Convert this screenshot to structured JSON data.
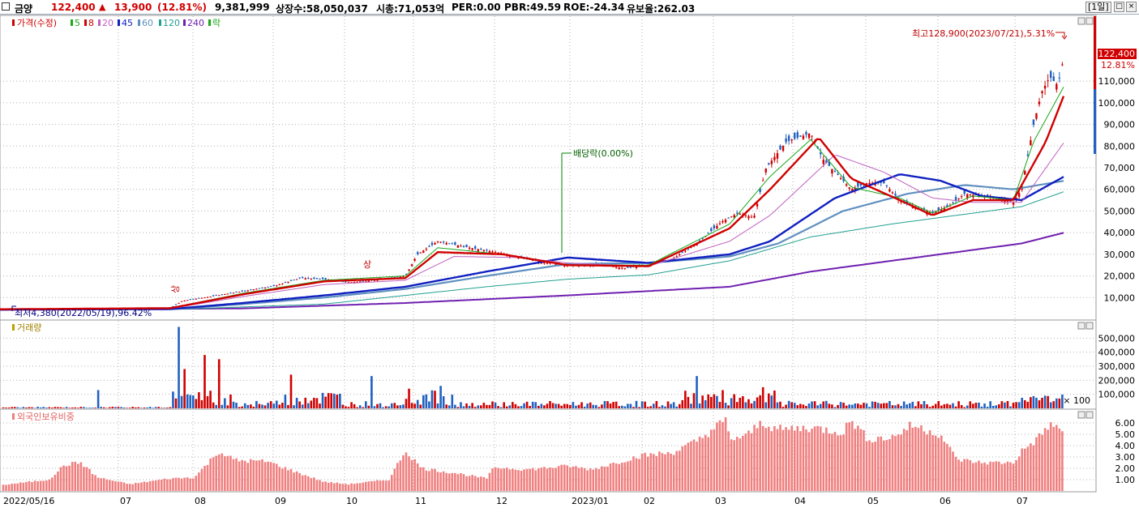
{
  "header": {
    "name": "금양",
    "price": "122,400",
    "change_arrow": "▲",
    "change": "13,900",
    "change_pct": "(12.81%)",
    "volume": "9,381,999",
    "listed": "상장수:58,050,037",
    "mktcap": "시총:71,053억",
    "per": "PER:0.00",
    "pbr": "PBR:49.59",
    "roe": "ROE:-24.34",
    "reserve": "유보율:262.03",
    "period": "[1일]",
    "max_btn": "□",
    "close_btn": "×"
  },
  "legend": {
    "price": "가격(수정)",
    "ma": [
      "5",
      "8",
      "20",
      "45",
      "60",
      "120",
      "240"
    ],
    "ex": "락"
  },
  "colors": {
    "up": "#d00000",
    "down": "#2060c0",
    "ma5": "#1aa81a",
    "ma8": "#d00000",
    "ma20": "#c060c0",
    "ma45": "#1020c0",
    "ma60": "#6090c0",
    "ma120": "#20a090",
    "ma240": "#7020b0",
    "grid": "#b0b0b0",
    "volume_up": "#d00000",
    "volume_down": "#2060c0",
    "foreign": "#f08080"
  },
  "annotations": {
    "high": "최고128,900(2023/07/21),5.31%",
    "low": "최저4,380(2022/05/19),96.42%",
    "dividend": "배당락(0.00%)",
    "current_price": "122,400",
    "current_pct": "12.81%",
    "limit_up_1": "상",
    "limit_up_2": "상"
  },
  "panels": {
    "volume": "거래량",
    "foreign": "외국인보유비중",
    "volume_unit": "× 100"
  },
  "chart_data": [
    {
      "type": "candlestick",
      "title": "가격(수정)",
      "ylim": [
        0,
        140000
      ],
      "y_ticks": [
        "10,000",
        "20,000",
        "30,000",
        "40,000",
        "50,000",
        "60,000",
        "70,000",
        "80,000",
        "90,000",
        "100,000",
        "110,000"
      ],
      "x_ticks": [
        "2022/05/16",
        "07",
        "08",
        "09",
        "10",
        "11",
        "12",
        "2023/01",
        "02",
        "03",
        "04",
        "05",
        "06",
        "07"
      ],
      "close_points": [
        [
          0,
          4600
        ],
        [
          120,
          4800
        ],
        [
          210,
          5200
        ],
        [
          225,
          8500
        ],
        [
          260,
          10500
        ],
        [
          300,
          13000
        ],
        [
          340,
          15500
        ],
        [
          370,
          19000
        ],
        [
          400,
          18500
        ],
        [
          430,
          17000
        ],
        [
          460,
          18000
        ],
        [
          500,
          20000
        ],
        [
          515,
          30000
        ],
        [
          540,
          36000
        ],
        [
          580,
          33000
        ],
        [
          620,
          30500
        ],
        [
          660,
          27000
        ],
        [
          700,
          25000
        ],
        [
          740,
          25500
        ],
        [
          770,
          23500
        ],
        [
          800,
          25000
        ],
        [
          830,
          28000
        ],
        [
          860,
          35000
        ],
        [
          890,
          45000
        ],
        [
          910,
          49000
        ],
        [
          930,
          47000
        ],
        [
          945,
          70000
        ],
        [
          970,
          82000
        ],
        [
          1000,
          86000
        ],
        [
          1015,
          74000
        ],
        [
          1030,
          68000
        ],
        [
          1050,
          60000
        ],
        [
          1070,
          63000
        ],
        [
          1090,
          63000
        ],
        [
          1110,
          55000
        ],
        [
          1130,
          52000
        ],
        [
          1150,
          49000
        ],
        [
          1170,
          52000
        ],
        [
          1190,
          58000
        ],
        [
          1210,
          57000
        ],
        [
          1230,
          56000
        ],
        [
          1250,
          54000
        ],
        [
          1260,
          60000
        ],
        [
          1275,
          90000
        ],
        [
          1285,
          105000
        ],
        [
          1295,
          112000
        ],
        [
          1305,
          108000
        ],
        [
          1313,
          122400
        ]
      ],
      "ma_points": {
        "ma5": [
          [
            0,
            4600
          ],
          [
            210,
            5200
          ],
          [
            300,
            12000
          ],
          [
            400,
            18000
          ],
          [
            500,
            20000
          ],
          [
            540,
            33000
          ],
          [
            620,
            30000
          ],
          [
            700,
            25000
          ],
          [
            800,
            25000
          ],
          [
            900,
            44000
          ],
          [
            950,
            66000
          ],
          [
            1000,
            83000
          ],
          [
            1050,
            61000
          ],
          [
            1110,
            56000
          ],
          [
            1150,
            49000
          ],
          [
            1200,
            57000
          ],
          [
            1250,
            55000
          ],
          [
            1275,
            82000
          ],
          [
            1313,
            108000
          ]
        ],
        "ma8": [
          [
            0,
            4600
          ],
          [
            210,
            5100
          ],
          [
            300,
            11500
          ],
          [
            400,
            17500
          ],
          [
            500,
            19000
          ],
          [
            540,
            31000
          ],
          [
            620,
            30000
          ],
          [
            700,
            25000
          ],
          [
            800,
            24500
          ],
          [
            900,
            42000
          ],
          [
            950,
            60000
          ],
          [
            1010,
            84000
          ],
          [
            1050,
            65000
          ],
          [
            1110,
            55000
          ],
          [
            1150,
            48000
          ],
          [
            1200,
            55000
          ],
          [
            1250,
            55000
          ],
          [
            1290,
            82000
          ],
          [
            1313,
            104000
          ]
        ],
        "ma20": [
          [
            0,
            4500
          ],
          [
            210,
            4900
          ],
          [
            300,
            10500
          ],
          [
            400,
            16000
          ],
          [
            500,
            18000
          ],
          [
            560,
            29000
          ],
          [
            640,
            28500
          ],
          [
            700,
            26000
          ],
          [
            800,
            24500
          ],
          [
            900,
            36000
          ],
          [
            950,
            48000
          ],
          [
            1030,
            76000
          ],
          [
            1090,
            68000
          ],
          [
            1150,
            56000
          ],
          [
            1200,
            54000
          ],
          [
            1260,
            54000
          ],
          [
            1313,
            82000
          ]
        ],
        "ma45": [
          [
            0,
            4500
          ],
          [
            210,
            4700
          ],
          [
            300,
            7500
          ],
          [
            400,
            11000
          ],
          [
            500,
            15000
          ],
          [
            600,
            22000
          ],
          [
            700,
            28500
          ],
          [
            800,
            26000
          ],
          [
            900,
            30000
          ],
          [
            950,
            36000
          ],
          [
            1030,
            56000
          ],
          [
            1110,
            67000
          ],
          [
            1160,
            64000
          ],
          [
            1210,
            57000
          ],
          [
            1260,
            55000
          ],
          [
            1313,
            66000
          ]
        ],
        "ma60": [
          [
            0,
            4500
          ],
          [
            210,
            4600
          ],
          [
            300,
            7000
          ],
          [
            400,
            10000
          ],
          [
            500,
            14000
          ],
          [
            600,
            20000
          ],
          [
            700,
            25500
          ],
          [
            800,
            26000
          ],
          [
            900,
            29000
          ],
          [
            960,
            35000
          ],
          [
            1040,
            50000
          ],
          [
            1120,
            58000
          ],
          [
            1190,
            62000
          ],
          [
            1250,
            60000
          ],
          [
            1313,
            64000
          ]
        ],
        "ma120": [
          [
            0,
            4400
          ],
          [
            210,
            4500
          ],
          [
            400,
            7000
          ],
          [
            600,
            15000
          ],
          [
            700,
            18500
          ],
          [
            800,
            20500
          ],
          [
            900,
            27000
          ],
          [
            1000,
            38000
          ],
          [
            1100,
            44000
          ],
          [
            1200,
            49000
          ],
          [
            1260,
            52000
          ],
          [
            1313,
            59000
          ]
        ],
        "ma240": [
          [
            0,
            4300
          ],
          [
            300,
            5000
          ],
          [
            500,
            7500
          ],
          [
            700,
            11000
          ],
          [
            900,
            15000
          ],
          [
            1000,
            22000
          ],
          [
            1100,
            27000
          ],
          [
            1200,
            32000
          ],
          [
            1260,
            35000
          ],
          [
            1313,
            40000
          ]
        ]
      }
    },
    {
      "type": "bar",
      "title": "거래량",
      "ylim": [
        0,
        600000
      ],
      "y_ticks": [
        "100,000",
        "200,000",
        "300,000",
        "400,000",
        "500,000"
      ],
      "unit": "× 100"
    },
    {
      "type": "bar",
      "title": "외국인보유비중",
      "ylim": [
        0,
        7
      ],
      "y_ticks": [
        "1.00",
        "2.00",
        "3.00",
        "4.00",
        "5.00",
        "6.00"
      ],
      "values_points": [
        [
          0,
          0.5
        ],
        [
          60,
          1.0
        ],
        [
          80,
          2.3
        ],
        [
          100,
          2.5
        ],
        [
          120,
          1.2
        ],
        [
          160,
          0.6
        ],
        [
          210,
          1.1
        ],
        [
          240,
          1.2
        ],
        [
          270,
          3.5
        ],
        [
          290,
          2.7
        ],
        [
          330,
          2.6
        ],
        [
          360,
          1.8
        ],
        [
          400,
          0.8
        ],
        [
          430,
          0.6
        ],
        [
          480,
          1.0
        ],
        [
          500,
          3.6
        ],
        [
          520,
          2.0
        ],
        [
          560,
          1.6
        ],
        [
          600,
          1.1
        ],
        [
          610,
          2.1
        ],
        [
          650,
          1.9
        ],
        [
          700,
          2.2
        ],
        [
          730,
          1.9
        ],
        [
          760,
          2.5
        ],
        [
          790,
          3.1
        ],
        [
          830,
          3.4
        ],
        [
          860,
          4.4
        ],
        [
          880,
          5.5
        ],
        [
          895,
          6.2
        ],
        [
          900,
          4.6
        ],
        [
          920,
          4.8
        ],
        [
          940,
          6.1
        ],
        [
          960,
          5.4
        ],
        [
          1000,
          5.6
        ],
        [
          1040,
          5.2
        ],
        [
          1050,
          6.3
        ],
        [
          1070,
          4.6
        ],
        [
          1100,
          4.7
        ],
        [
          1125,
          5.8
        ],
        [
          1160,
          5.0
        ],
        [
          1180,
          2.8
        ],
        [
          1210,
          2.5
        ],
        [
          1250,
          2.5
        ],
        [
          1260,
          3.5
        ],
        [
          1280,
          4.6
        ],
        [
          1295,
          5.9
        ],
        [
          1313,
          5.1
        ]
      ]
    }
  ]
}
